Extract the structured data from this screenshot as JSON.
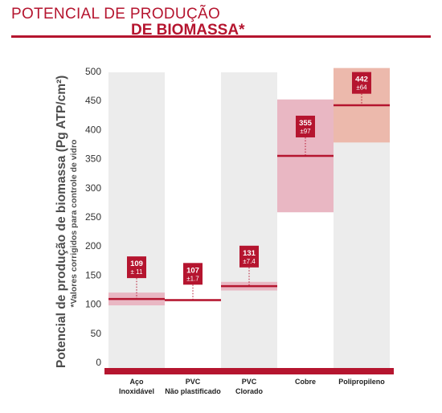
{
  "header": {
    "title_line1": "POTENCIAL DE PRODUÇÃO",
    "title_line2": "DE BIOMASSA*"
  },
  "colors": {
    "accent": "#b5152f",
    "stripe": "#ececec",
    "band_light": "#e9b7c3",
    "band_orange": "#ecb9ac"
  },
  "chart_data": {
    "type": "bar",
    "ylabel": "Potencial de produção de biomassa (Pg ATP/cm²)",
    "ynote": "*Valores corrigidos para controle de vidro",
    "ylim": [
      0,
      500
    ],
    "yticks": [
      0,
      50,
      100,
      150,
      200,
      250,
      300,
      350,
      400,
      450,
      500
    ],
    "grid": false,
    "categories": [
      [
        "Aço",
        "Inoxidável"
      ],
      [
        "PVC",
        "Não plastificado"
      ],
      [
        "PVC",
        "Clorado"
      ],
      [
        "Cobre"
      ],
      [
        "Polipropileno"
      ]
    ],
    "series": [
      {
        "values": [
          109,
          107,
          131,
          355,
          442
        ],
        "errors": [
          11,
          1.7,
          7.4,
          97,
          64
        ],
        "value_labels": [
          "109",
          "107",
          "131",
          "355",
          "442"
        ],
        "error_labels": [
          "± 11",
          "±1.7",
          "±7.4",
          "±97",
          "±64"
        ]
      }
    ]
  }
}
